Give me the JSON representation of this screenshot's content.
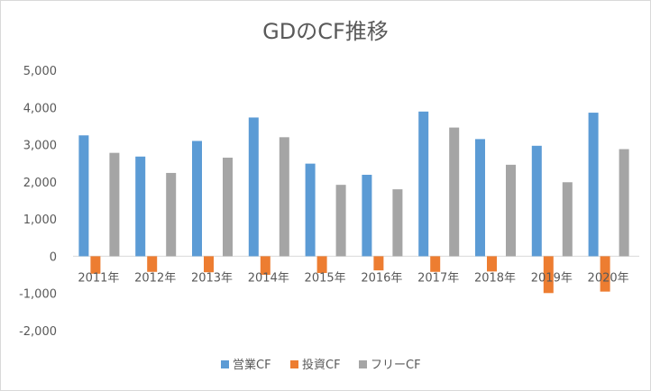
{
  "chart_data": {
    "type": "bar",
    "title": "GDのCF推移",
    "xlabel": "",
    "ylabel": "",
    "ylim": [
      -2000,
      5000
    ],
    "ytick_step": 1000,
    "yticks": [
      "5,000",
      "4,000",
      "3,000",
      "2,000",
      "1,000",
      "0",
      "-1,000",
      "-2,000"
    ],
    "grid": false,
    "legend_position": "bottom",
    "categories": [
      "2011年",
      "2012年",
      "2013年",
      "2014年",
      "2015年",
      "2016年",
      "2017年",
      "2018年",
      "2019年",
      "2020年"
    ],
    "series": [
      {
        "name": "営業CF",
        "color": "#5b9bd5",
        "values": [
          3250,
          2680,
          3100,
          3730,
          2490,
          2190,
          3890,
          3150,
          2970,
          3860
        ]
      },
      {
        "name": "投資CF",
        "color": "#ed7d31",
        "values": [
          -470,
          -420,
          -430,
          -500,
          -450,
          -380,
          -420,
          -410,
          -990,
          -950
        ]
      },
      {
        "name": "フリーCF",
        "color": "#a5a5a5",
        "values": [
          2780,
          2240,
          2650,
          3200,
          1920,
          1800,
          3460,
          2460,
          1990,
          2880
        ]
      }
    ]
  }
}
